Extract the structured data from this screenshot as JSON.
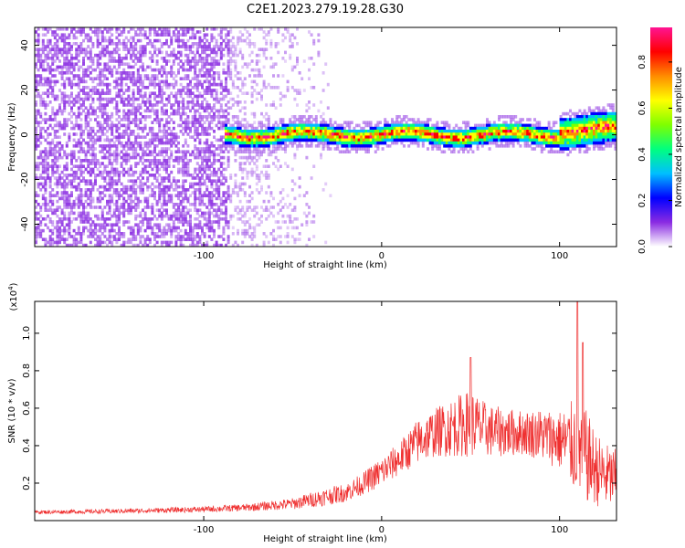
{
  "title": "C2E1.2023.279.19.28.G30",
  "chart_data": [
    {
      "type": "heatmap",
      "xlabel": "Height of straight line (km)",
      "ylabel": "Frequency (Hz)",
      "xlim": [
        -195,
        132
      ],
      "ylim": [
        -50,
        48
      ],
      "x_ticks": [
        -100,
        0,
        100
      ],
      "x_tick_labels": [
        "-100",
        "0",
        "100"
      ],
      "y_ticks": [
        -40,
        -20,
        0,
        20,
        40
      ],
      "y_tick_labels": [
        "-40",
        "-20",
        "0",
        "20",
        "40"
      ],
      "colorbar": {
        "label": "Normalized spectral amplitude",
        "range": [
          0,
          0.95
        ],
        "ticks": [
          0.0,
          0.2,
          0.4,
          0.6,
          0.8
        ],
        "tick_labels": [
          "0.0",
          "0.2",
          "0.4",
          "0.6",
          "0.8"
        ],
        "colormap": [
          "#ffffff",
          "#8a2be2",
          "#0000ff",
          "#00bfff",
          "#00ff7f",
          "#7fff00",
          "#ffff00",
          "#ff8c00",
          "#ff0000",
          "#ff1493"
        ]
      },
      "description_features": {
        "noise_region_x": [
          -195,
          -85
        ],
        "transition_region_x": [
          -85,
          -25
        ],
        "signal_band_center_hz": 0,
        "signal_band_halfwidth_hz": 4
      },
      "grid": false
    },
    {
      "type": "line",
      "xlabel": "Height of straight line (km)",
      "ylabel": "SNR (10 * v/v)",
      "y_multiplier": "(x10",
      "y_multiplier_exp": "4",
      "y_multiplier_close": ")",
      "xlim": [
        -195,
        132
      ],
      "ylim": [
        0,
        1.17
      ],
      "x_ticks": [
        -100,
        0,
        100
      ],
      "x_tick_labels": [
        "-100",
        "0",
        "100"
      ],
      "y_ticks": [
        0.2,
        0.4,
        0.6,
        0.8,
        1.0
      ],
      "y_tick_labels": [
        "0.2",
        "0.4",
        "0.6",
        "0.8",
        "1.0"
      ],
      "color": "#ef3030",
      "series": [
        {
          "x": [
            -195,
            -150,
            -100,
            -75,
            -50,
            -35,
            -20,
            -10,
            0,
            10,
            20,
            30,
            40,
            50,
            60,
            70,
            80,
            90,
            100,
            105,
            110,
            115,
            120,
            125,
            132
          ],
          "mean": [
            0.045,
            0.05,
            0.06,
            0.07,
            0.09,
            0.12,
            0.15,
            0.2,
            0.26,
            0.33,
            0.42,
            0.47,
            0.5,
            0.52,
            0.48,
            0.47,
            0.47,
            0.46,
            0.43,
            0.41,
            0.4,
            0.34,
            0.28,
            0.24,
            0.22
          ],
          "spread": [
            0.01,
            0.012,
            0.015,
            0.02,
            0.03,
            0.045,
            0.05,
            0.06,
            0.08,
            0.09,
            0.12,
            0.13,
            0.16,
            0.18,
            0.14,
            0.13,
            0.12,
            0.14,
            0.16,
            0.2,
            0.3,
            0.25,
            0.2,
            0.18,
            0.16
          ],
          "peak": [
            {
              "x": 50,
              "y": 0.87
            },
            {
              "x": 110,
              "y": 1.17
            },
            {
              "x": 113,
              "y": 0.95
            }
          ]
        }
      ],
      "grid": false
    }
  ]
}
